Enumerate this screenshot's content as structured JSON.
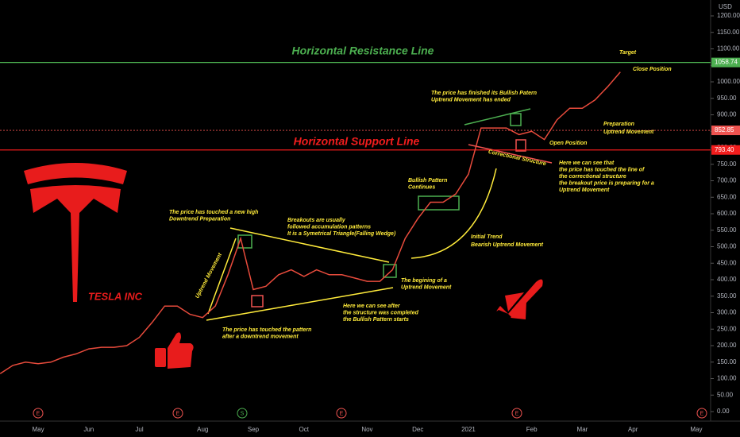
{
  "chart_data": {
    "type": "line",
    "currency": "USD",
    "categories": [
      null,
      null,
      null,
      "May",
      null,
      null,
      null,
      "Jun",
      null,
      null,
      null,
      "Jul",
      null,
      null,
      null,
      null,
      "Aug",
      null,
      null,
      null,
      "Sep",
      null,
      null,
      null,
      "Oct",
      null,
      null,
      null,
      null,
      "Nov",
      null,
      null,
      null,
      "Dec",
      null,
      null,
      null,
      "2021",
      null,
      null,
      null,
      null,
      "Feb",
      null,
      null,
      null,
      "Mar",
      null,
      null,
      null,
      "Apr",
      null,
      null,
      null,
      null,
      "May"
    ],
    "series": [
      {
        "color": "#e84b3c",
        "values": [
          115,
          140,
          150,
          145,
          150,
          165,
          175,
          190,
          195,
          195,
          200,
          225,
          270,
          320,
          320,
          295,
          285,
          320,
          415,
          525,
          370,
          380,
          415,
          430,
          410,
          430,
          415,
          415,
          405,
          395,
          395,
          430,
          525,
          585,
          635,
          635,
          660,
          720,
          860,
          860,
          860,
          840,
          850,
          825,
          885,
          920,
          920,
          945,
          985,
          1030,
          null,
          null,
          null,
          null,
          null,
          null
        ]
      }
    ],
    "ylim": [
      0,
      1200
    ],
    "yticks": [
      {
        "value": 0,
        "label": "0.00"
      },
      {
        "value": 50,
        "label": "50.00"
      },
      {
        "value": 100,
        "label": "100.00"
      },
      {
        "value": 150,
        "label": "150.00"
      },
      {
        "value": 200,
        "label": "200.00"
      },
      {
        "value": 250,
        "label": "250.00"
      },
      {
        "value": 300,
        "label": "300.00"
      },
      {
        "value": 350,
        "label": "350.00"
      },
      {
        "value": 400,
        "label": "400.00"
      },
      {
        "value": 450,
        "label": "450.00"
      },
      {
        "value": 500,
        "label": "500.00"
      },
      {
        "value": 550,
        "label": "550.00"
      },
      {
        "value": 600,
        "label": "600.00"
      },
      {
        "value": 650,
        "label": "650.00"
      },
      {
        "value": 700,
        "label": "700.00"
      },
      {
        "value": 750,
        "label": "750.00"
      },
      {
        "value": 800,
        "label": "800.00"
      },
      {
        "value": 850,
        "label": "850.00"
      },
      {
        "value": 900,
        "label": "900.00"
      },
      {
        "value": 950,
        "label": "950.00"
      },
      {
        "value": 1000,
        "label": "1000.00"
      },
      {
        "value": 1050,
        "label": "1050.00"
      },
      {
        "value": 1100,
        "label": "1100.00"
      },
      {
        "value": 1150,
        "label": "1150.00"
      },
      {
        "value": 1200,
        "label": "1200.00"
      }
    ],
    "reference_lines": [
      {
        "name": "Horizontal Resistance Line",
        "value": 1058.74,
        "label": "1058.74",
        "color": "#4caf50"
      },
      {
        "name": "Horizontal Support Line",
        "value": 793.4,
        "label": "793.40",
        "color": "#f21d1d"
      },
      {
        "value": 852.85,
        "label": "852.85",
        "color": "#ef5350"
      }
    ],
    "brand": "TESLA INC",
    "events": [
      "E",
      "E",
      "S",
      "E",
      "E",
      "E"
    ],
    "annotations": [
      [
        "Target"
      ],
      [
        "Close Position"
      ],
      [
        "The price has finished its Bullish Patern",
        "Uptrend Movement has ended"
      ],
      [
        "Preparation",
        "Uptrend Movement"
      ],
      [
        "Open Position"
      ],
      [
        "Correctional Structure"
      ],
      [
        "Here  we can see that",
        "the price has touched the line of",
        "the correctional structure",
        "the breakout price is preparing for a",
        "Uptrend Movement"
      ],
      [
        "Bullish Pattern",
        "Continues"
      ],
      [
        "The price has touched a new high",
        "Downtrend Preparation"
      ],
      [
        "Breakouts are usually",
        " followed accumulation patterns",
        " It is a Symetrical Triangle(Falling Wedge)"
      ],
      [
        "Initial Trend",
        "Bearish Uptrend Movement"
      ],
      [
        "Uptrend Movement"
      ],
      [
        "The begining of a",
        "Uptrend Movement"
      ],
      [
        "Here we can see after",
        "the structure was completed",
        "the Bullish Pattern starts"
      ],
      [
        "The price has touched the pattern",
        "after a downtrend movement"
      ]
    ]
  }
}
